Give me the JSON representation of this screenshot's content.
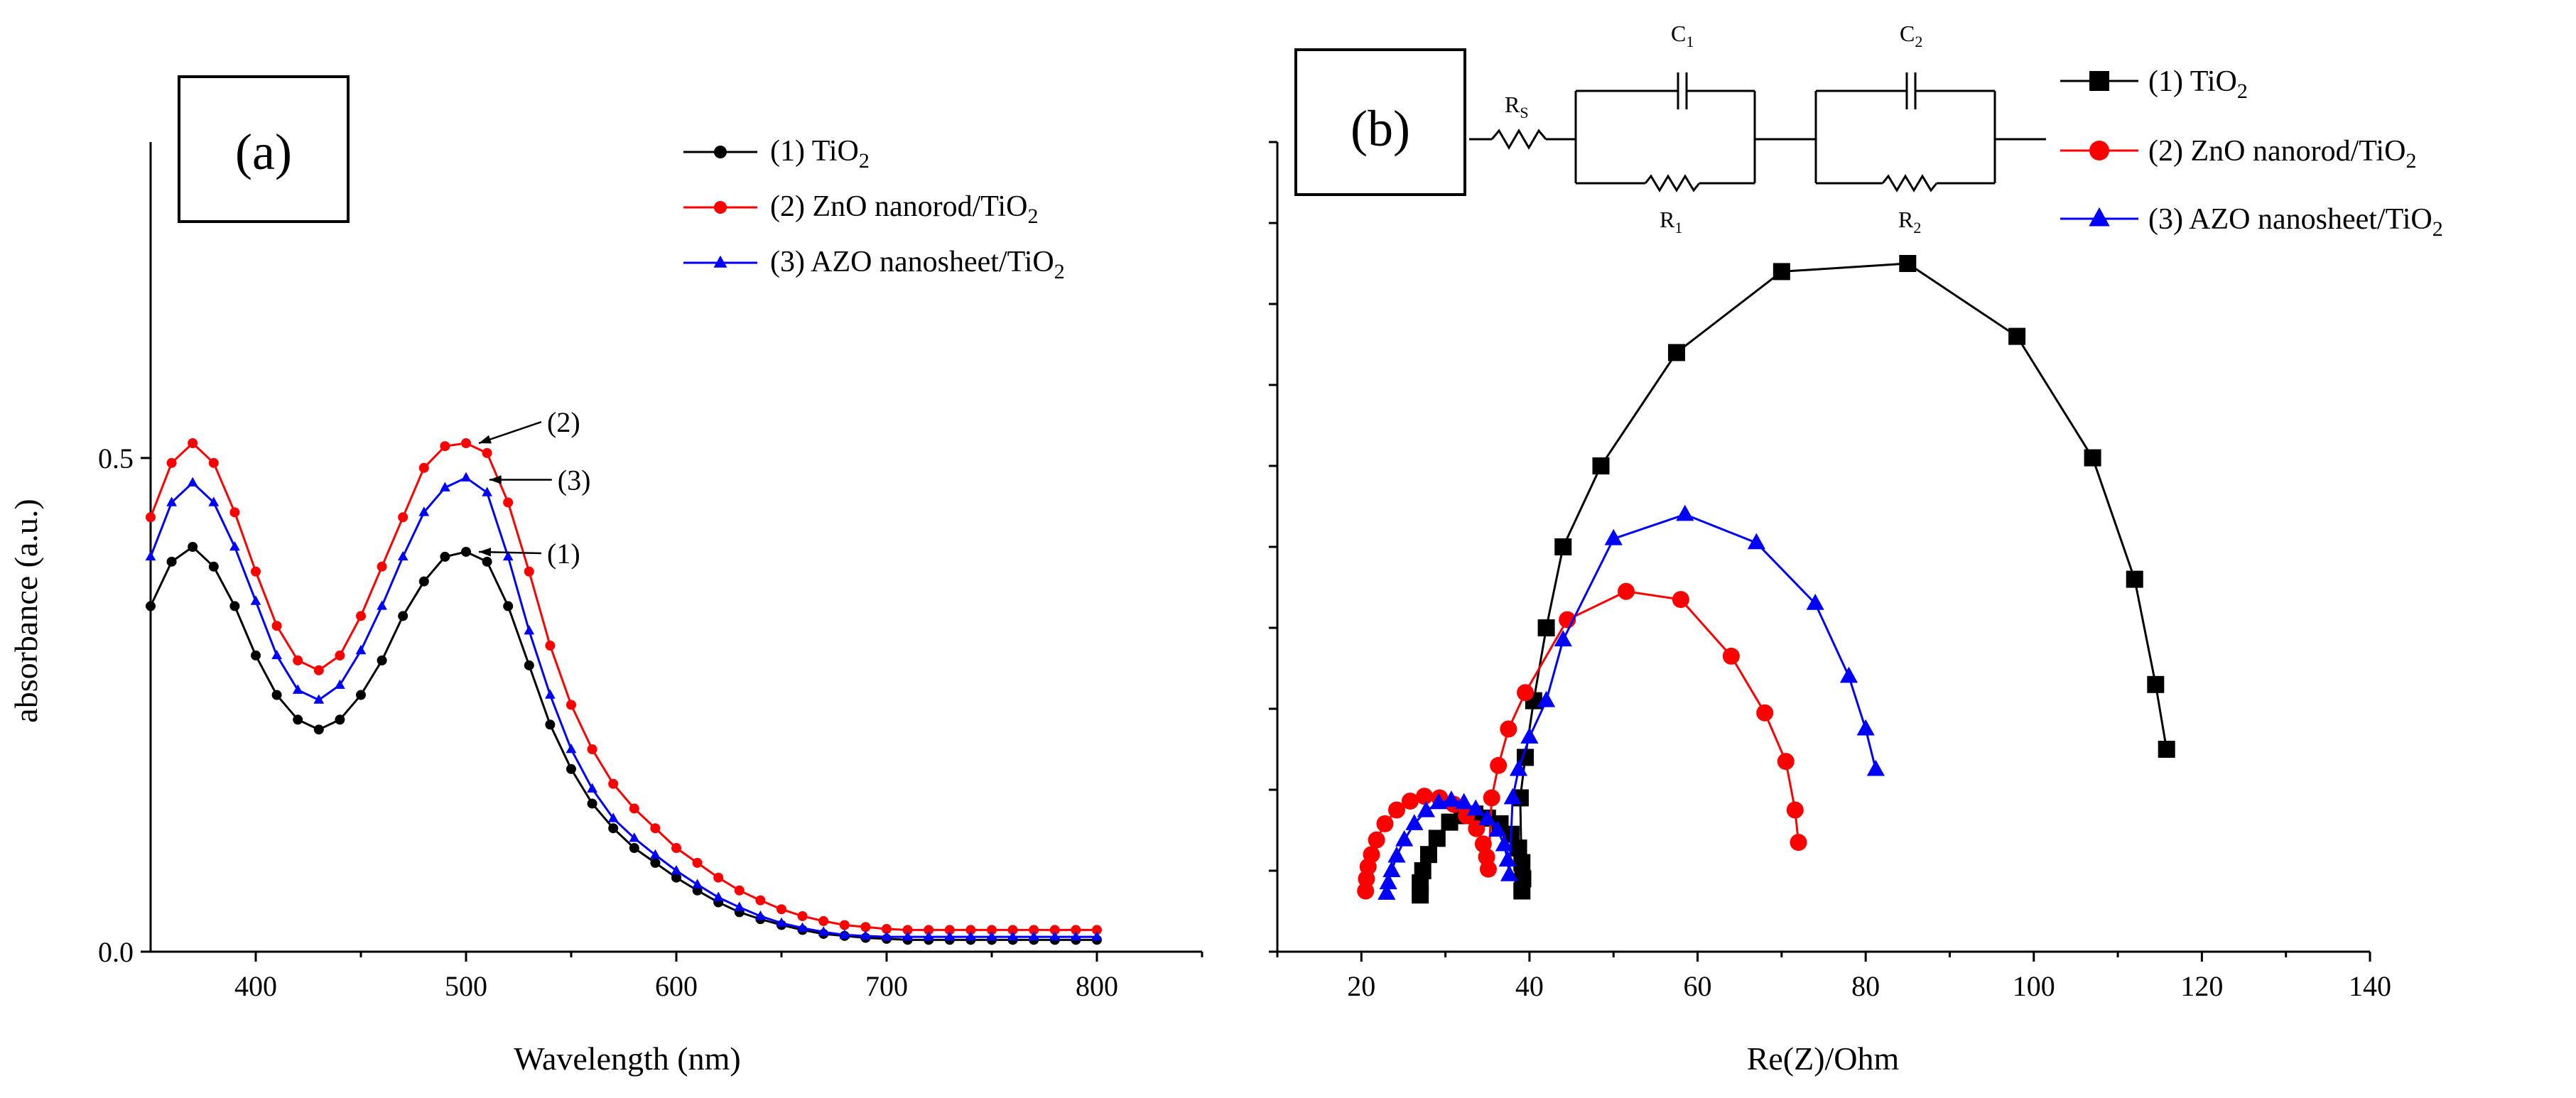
{
  "chart_data": [
    {
      "panel": "(a)",
      "type": "line",
      "xlabel": "Wavelength (nm)",
      "ylabel": "absorbance (a.u.)",
      "xlim": [
        350,
        850
      ],
      "ylim": [
        0,
        0.82
      ],
      "xticks": [
        400,
        500,
        600,
        700,
        800
      ],
      "yticks": [
        0.0,
        0.5
      ],
      "ytick_labels": [
        "0.0",
        "0.5"
      ],
      "legend_position": "top-right",
      "series": [
        {
          "name": "(1) TiO",
          "sub": "2",
          "color": "#000000",
          "marker": "circle",
          "label": "(1)",
          "x": [
            350,
            360,
            370,
            380,
            390,
            400,
            410,
            420,
            430,
            440,
            450,
            460,
            470,
            480,
            490,
            500,
            510,
            520,
            530,
            540,
            550,
            560,
            570,
            580,
            590,
            600,
            610,
            620,
            630,
            640,
            650,
            660,
            670,
            680,
            690,
            700,
            710,
            720,
            730,
            740,
            750,
            760,
            770,
            780,
            790,
            800
          ],
          "y": [
            0.35,
            0.395,
            0.41,
            0.39,
            0.35,
            0.3,
            0.26,
            0.235,
            0.225,
            0.235,
            0.26,
            0.295,
            0.34,
            0.375,
            0.4,
            0.405,
            0.395,
            0.35,
            0.29,
            0.23,
            0.185,
            0.15,
            0.125,
            0.105,
            0.09,
            0.075,
            0.062,
            0.05,
            0.04,
            0.033,
            0.027,
            0.022,
            0.018,
            0.016,
            0.014,
            0.013,
            0.012,
            0.012,
            0.012,
            0.012,
            0.012,
            0.012,
            0.012,
            0.012,
            0.012,
            0.012
          ]
        },
        {
          "name": "(2) ZnO nanorod/TiO",
          "sub": "2",
          "color": "#ff0000",
          "marker": "circle",
          "label": "(2)",
          "x": [
            350,
            360,
            370,
            380,
            390,
            400,
            410,
            420,
            430,
            440,
            450,
            460,
            470,
            480,
            490,
            500,
            510,
            520,
            530,
            540,
            550,
            560,
            570,
            580,
            590,
            600,
            610,
            620,
            630,
            640,
            650,
            660,
            670,
            680,
            690,
            700,
            710,
            720,
            730,
            740,
            750,
            760,
            770,
            780,
            790,
            800
          ],
          "y": [
            0.44,
            0.495,
            0.515,
            0.495,
            0.445,
            0.385,
            0.33,
            0.295,
            0.285,
            0.3,
            0.34,
            0.39,
            0.44,
            0.49,
            0.512,
            0.515,
            0.505,
            0.455,
            0.385,
            0.31,
            0.25,
            0.205,
            0.17,
            0.145,
            0.125,
            0.105,
            0.09,
            0.075,
            0.062,
            0.052,
            0.043,
            0.036,
            0.031,
            0.027,
            0.025,
            0.023,
            0.022,
            0.022,
            0.022,
            0.022,
            0.022,
            0.022,
            0.022,
            0.022,
            0.022,
            0.022
          ]
        },
        {
          "name": "(3) AZO nanosheet/TiO",
          "sub": "2",
          "color": "#0000ff",
          "marker": "triangle",
          "label": "(3)",
          "x": [
            350,
            360,
            370,
            380,
            390,
            400,
            410,
            420,
            430,
            440,
            450,
            460,
            470,
            480,
            490,
            500,
            510,
            520,
            530,
            540,
            550,
            560,
            570,
            580,
            590,
            600,
            610,
            620,
            630,
            640,
            650,
            660,
            670,
            680,
            690,
            700,
            710,
            720,
            730,
            740,
            750,
            760,
            770,
            780,
            790,
            800
          ],
          "y": [
            0.4,
            0.455,
            0.475,
            0.455,
            0.41,
            0.355,
            0.3,
            0.265,
            0.255,
            0.27,
            0.305,
            0.35,
            0.4,
            0.445,
            0.47,
            0.48,
            0.465,
            0.4,
            0.325,
            0.26,
            0.205,
            0.165,
            0.135,
            0.115,
            0.098,
            0.082,
            0.068,
            0.055,
            0.045,
            0.036,
            0.029,
            0.024,
            0.02,
            0.017,
            0.016,
            0.015,
            0.015,
            0.015,
            0.015,
            0.015,
            0.015,
            0.015,
            0.015,
            0.015,
            0.015,
            0.015
          ]
        }
      ]
    },
    {
      "panel": "(b)",
      "type": "scatter",
      "xlabel": "Re(Z)/Ohm",
      "ylabel": "",
      "xlim": [
        10,
        140
      ],
      "ylim": [
        0,
        100
      ],
      "xticks": [
        20,
        40,
        60,
        80,
        100,
        120,
        140
      ],
      "legend_position": "top-right",
      "series": [
        {
          "name": "(1) TiO",
          "sub": "2",
          "color": "#000000",
          "marker": "square",
          "x": [
            27,
            27,
            27.3,
            28,
            29,
            30.5,
            32,
            33.5,
            35,
            36.5,
            37.8,
            38.7,
            39.1,
            39.2,
            39.1,
            38.9,
            39.5,
            40.5,
            42,
            44,
            48.5,
            57.5,
            70,
            85,
            98,
            107,
            112,
            114.5,
            115.8
          ],
          "y": [
            7,
            8.5,
            10,
            12,
            14,
            16,
            16.8,
            17,
            16.5,
            15.8,
            14.5,
            12.8,
            11,
            9,
            7.5,
            19,
            24,
            31,
            40,
            50,
            60,
            74,
            84,
            85,
            76,
            61,
            46,
            33,
            25
          ]
        },
        {
          "name": "(2) ZnO nanorod/TiO",
          "sub": "2",
          "color": "#ff0000",
          "marker": "circle",
          "x": [
            20.5,
            20.6,
            20.8,
            21.2,
            21.8,
            22.8,
            24.2,
            25.8,
            27.5,
            29.3,
            31,
            32.5,
            33.7,
            34.5,
            34.9,
            35.1,
            35.5,
            36.3,
            37.5,
            39.5,
            44.5,
            51.5,
            58,
            64,
            68,
            70.5,
            71.6,
            72
          ],
          "y": [
            7.5,
            9,
            10.5,
            12,
            13.8,
            15.8,
            17.5,
            18.6,
            19.2,
            19,
            18.2,
            16.8,
            15.2,
            13.3,
            11.7,
            10.2,
            19,
            23,
            27.5,
            32,
            41,
            44.5,
            43.5,
            36.5,
            29.5,
            23.5,
            17.5,
            13.5
          ]
        },
        {
          "name": "(3) AZO nanosheet/TiO",
          "sub": "2",
          "color": "#0000ff",
          "marker": "triangle",
          "x": [
            23,
            23.2,
            23.6,
            24.2,
            25.1,
            26.3,
            27.7,
            29.2,
            30.7,
            32.2,
            33.6,
            35,
            36.2,
            37,
            37.4,
            37.6,
            38,
            38.7,
            40,
            42,
            44,
            50,
            58.5,
            67,
            74,
            78,
            80,
            81.2
          ],
          "y": [
            7.2,
            8.5,
            10,
            11.8,
            13.8,
            15.8,
            17.4,
            18.4,
            18.7,
            18.4,
            17.6,
            16.4,
            15,
            13.2,
            11.3,
            9.5,
            19,
            22.5,
            26.5,
            31,
            38.5,
            51,
            54,
            50.5,
            43,
            34,
            27.5,
            22.5
          ]
        }
      ],
      "circuit": {
        "rs": "R",
        "rs_sub": "S",
        "c1": "C",
        "c1_sub": "1",
        "r1": "R",
        "r1_sub": "1",
        "c2": "C",
        "c2_sub": "2",
        "r2": "R",
        "r2_sub": "2"
      }
    }
  ]
}
